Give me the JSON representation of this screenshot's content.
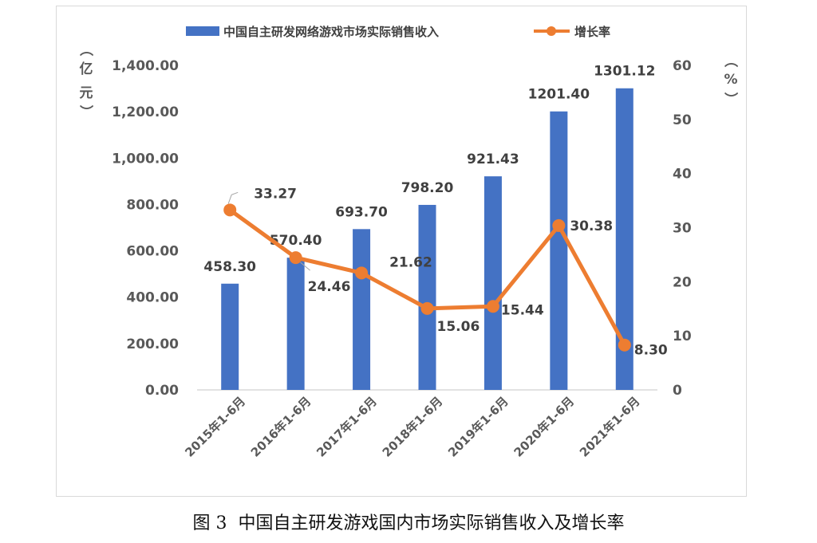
{
  "chart_data": {
    "type": "bar+line",
    "categories": [
      "2015年1-6月",
      "2016年1-6月",
      "2017年1-6月",
      "2018年1-6月",
      "2019年1-6月",
      "2020年1-6月",
      "2021年1-6月"
    ],
    "series": [
      {
        "name": "中国自主研发网络游戏市场实际销售收入",
        "type": "bar",
        "axis": "left",
        "values": [
          458.3,
          570.4,
          693.7,
          798.2,
          921.43,
          1201.4,
          1301.12
        ],
        "labels": [
          "458.30",
          "570.40",
          "693.70",
          "798.20",
          "921.43",
          "1201.40",
          "1301.12"
        ]
      },
      {
        "name": "增长率",
        "type": "line",
        "axis": "right",
        "values": [
          33.27,
          24.46,
          21.62,
          15.06,
          15.44,
          30.38,
          8.3
        ],
        "labels": [
          "33.27",
          "24.46",
          "21.62",
          "15.06",
          "15.44",
          "30.38",
          "8.30"
        ]
      }
    ],
    "y_left": {
      "label": "（亿元）",
      "label_chars": [
        "（",
        "亿",
        "元",
        "）"
      ],
      "range": [
        0,
        1400
      ],
      "ticks": [
        "0.00",
        "200.00",
        "400.00",
        "600.00",
        "800.00",
        "1,000.00",
        "1,200.00",
        "1,400.00"
      ]
    },
    "y_right": {
      "label": "（%）",
      "label_chars": [
        "（",
        "%",
        "）"
      ],
      "range": [
        0,
        60
      ],
      "ticks": [
        "0",
        "10",
        "20",
        "30",
        "40",
        "50",
        "60"
      ]
    },
    "grid": false,
    "legend_position": "top"
  },
  "colors": {
    "bar": "#4472c4",
    "line": "#ed7d31",
    "text": "#595959",
    "axis": "#d9d9d9"
  },
  "caption": {
    "prefix": "图 3",
    "text": "中国自主研发游戏国内市场实际销售收入及增长率"
  }
}
